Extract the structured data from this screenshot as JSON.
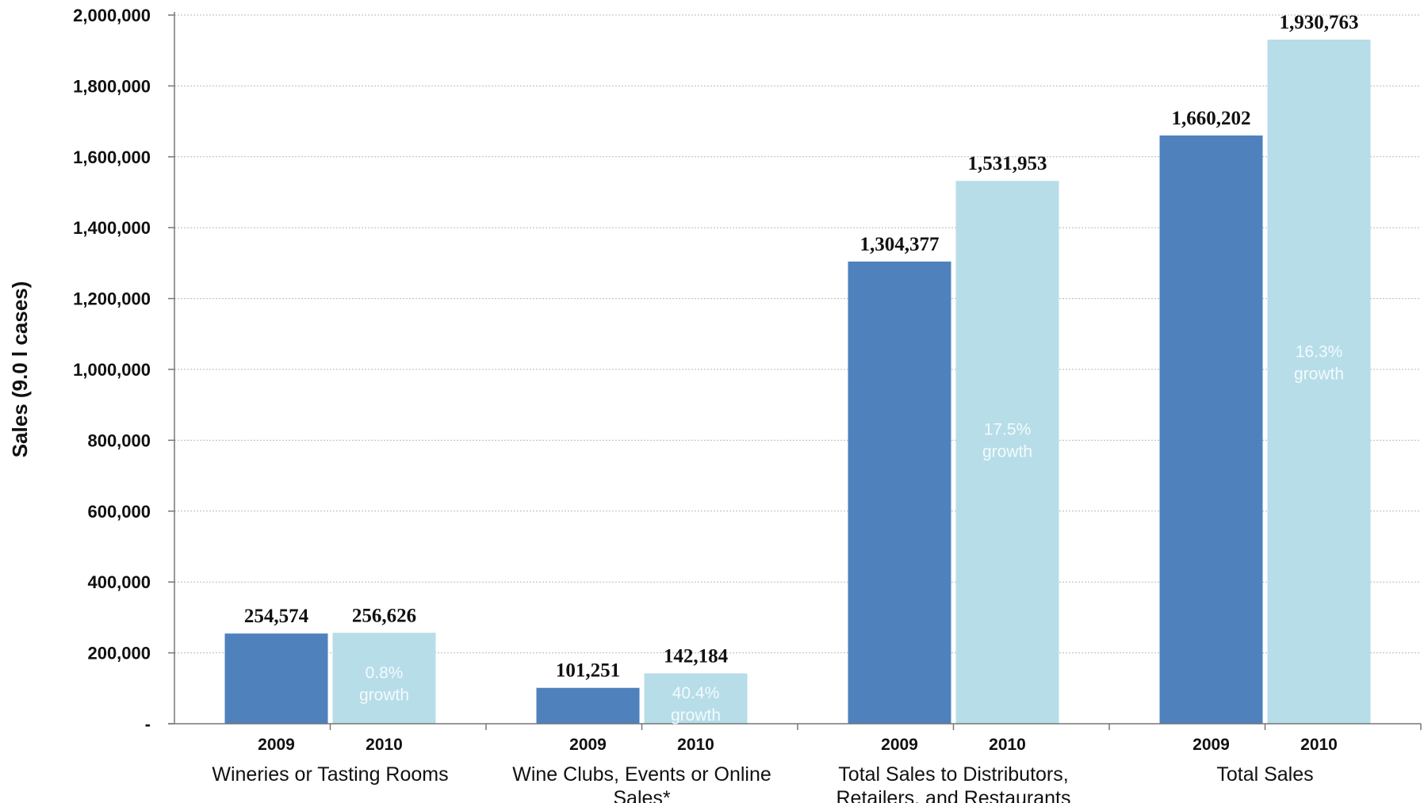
{
  "chart_data": {
    "type": "bar",
    "ylabel": "Sales (9.0 l cases)",
    "ylim": [
      0,
      2000000
    ],
    "y_ticks": [
      {
        "value": 0,
        "label": "-"
      },
      {
        "value": 200000,
        "label": "200,000"
      },
      {
        "value": 400000,
        "label": "400,000"
      },
      {
        "value": 600000,
        "label": "600,000"
      },
      {
        "value": 800000,
        "label": "800,000"
      },
      {
        "value": 1000000,
        "label": "1,000,000"
      },
      {
        "value": 1200000,
        "label": "1,200,000"
      },
      {
        "value": 1400000,
        "label": "1,400,000"
      },
      {
        "value": 1600000,
        "label": "1,600,000"
      },
      {
        "value": 1800000,
        "label": "1,800,000"
      },
      {
        "value": 2000000,
        "label": "2,000,000"
      }
    ],
    "grid": true,
    "colors": {
      "2009": "#4f81bd",
      "2010": "#b7dde8"
    },
    "groups": [
      {
        "category_lines": [
          "Wineries or Tasting Rooms"
        ],
        "bars": [
          {
            "year": "2009",
            "value": 254574,
            "value_label": "254,574"
          },
          {
            "year": "2010",
            "value": 256626,
            "value_label": "256,626",
            "growth": [
              "0.8%",
              "growth"
            ]
          }
        ]
      },
      {
        "category_lines": [
          "Wine Clubs, Events or Online",
          "Sales*"
        ],
        "bars": [
          {
            "year": "2009",
            "value": 101251,
            "value_label": "101,251"
          },
          {
            "year": "2010",
            "value": 142184,
            "value_label": "142,184",
            "growth": [
              "40.4%",
              "growth"
            ]
          }
        ]
      },
      {
        "category_lines": [
          "Total Sales to Distributors,",
          "Retailers, and Restaurants"
        ],
        "bars": [
          {
            "year": "2009",
            "value": 1304377,
            "value_label": "1,304,377"
          },
          {
            "year": "2010",
            "value": 1531953,
            "value_label": "1,531,953",
            "growth": [
              "17.5%",
              "growth"
            ]
          }
        ]
      },
      {
        "category_lines": [
          "Total Sales"
        ],
        "bars": [
          {
            "year": "2009",
            "value": 1660202,
            "value_label": "1,660,202"
          },
          {
            "year": "2010",
            "value": 1930763,
            "value_label": "1,930,763",
            "growth": [
              "16.3%",
              "growth"
            ]
          }
        ]
      }
    ]
  }
}
